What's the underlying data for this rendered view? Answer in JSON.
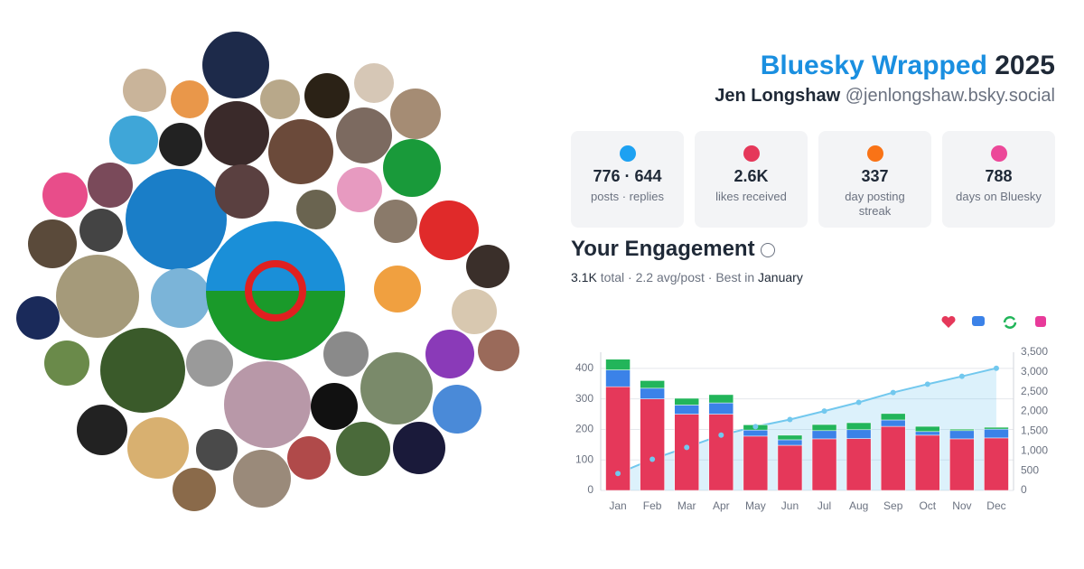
{
  "header": {
    "title": "Bluesky Wrapped",
    "year": "2025",
    "name": "Jen Longshaw",
    "handle": "@jenlongshaw.bsky.social"
  },
  "stats": [
    {
      "value": "776 · 644",
      "label": "posts · replies"
    },
    {
      "value": "2.6K",
      "label": "likes received"
    },
    {
      "value": "337",
      "label": "day posting streak"
    },
    {
      "value": "788",
      "label": "days on Bluesky"
    }
  ],
  "engagement": {
    "title": "Your Engagement",
    "total": "3.1K",
    "text": "total · 2.2 avg/post · Best in",
    "best": "January"
  },
  "chart_data": {
    "type": "bar",
    "stacked": true,
    "grid": true,
    "categories": [
      "Jan",
      "Feb",
      "Mar",
      "Apr",
      "May",
      "Jun",
      "Jul",
      "Aug",
      "Sep",
      "Oct",
      "Nov",
      "Dec"
    ],
    "series": [
      {
        "color": "#e5385a",
        "values": [
          340,
          300,
          250,
          250,
          178,
          148,
          169,
          170,
          210,
          181,
          169,
          172
        ]
      },
      {
        "color": "#3b82e8",
        "values": [
          55,
          35,
          30,
          37,
          20,
          18,
          27,
          29,
          21,
          12,
          27,
          29
        ]
      },
      {
        "color": "#22b55a",
        "values": [
          35,
          25,
          22,
          27,
          17,
          15,
          20,
          23,
          21,
          17,
          5,
          6
        ]
      },
      {
        "type": "line",
        "axis": "y2",
        "color": "#72c8ee",
        "values": [
          430,
          790,
          1090,
          1400,
          1615,
          1795,
          2010,
          2230,
          2480,
          2690,
          2890,
          3095
        ]
      }
    ],
    "ylim": [
      0,
      453
    ],
    "yticks": [
      0,
      100,
      200,
      300,
      400
    ],
    "y2lim": [
      0,
      3500
    ],
    "y2ticks": [
      0,
      500,
      {
        "value": 1000,
        "label": "1,000"
      },
      {
        "value": 1500,
        "label": "1,500"
      },
      {
        "value": 2000,
        "label": "2,000"
      },
      {
        "value": 2500,
        "label": "2,500"
      },
      {
        "value": 3000,
        "label": "3,000"
      },
      {
        "value": 3500,
        "label": "3,500"
      }
    ]
  }
}
